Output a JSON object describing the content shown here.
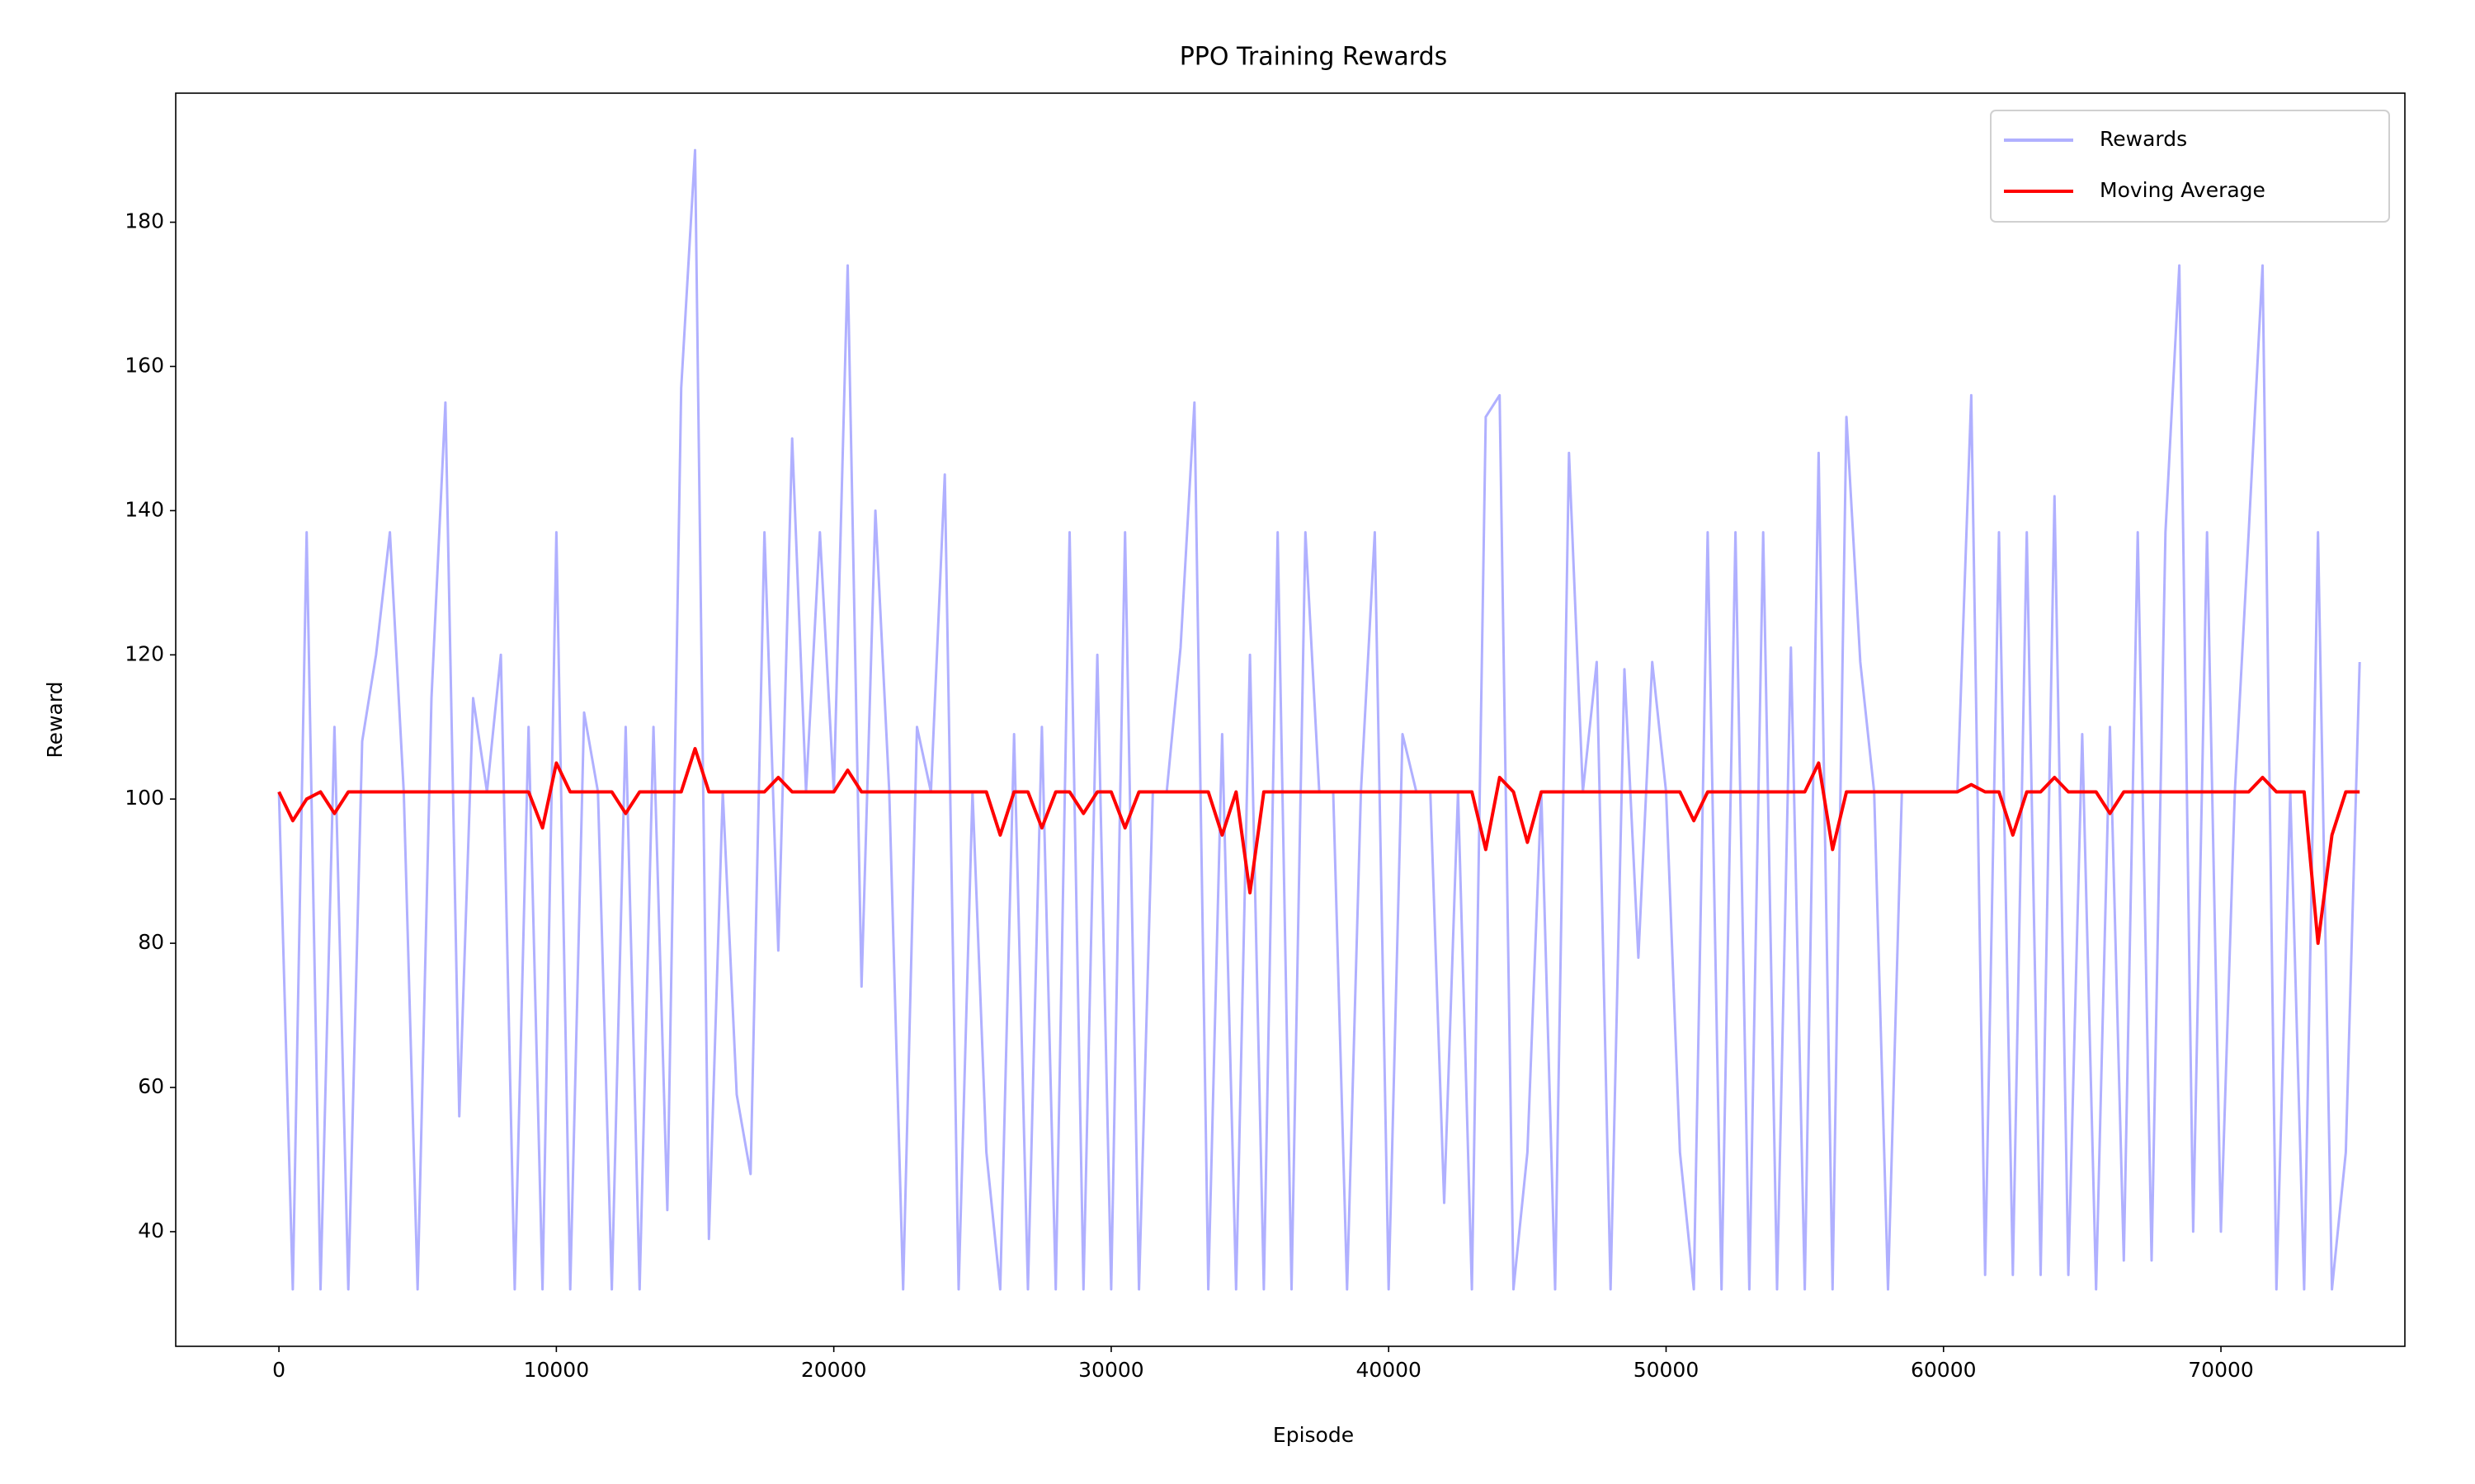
{
  "chart_data": {
    "type": "line",
    "title": "PPO Training Rewards",
    "x_label": "Episode",
    "y_label": "Reward",
    "x": [
      0,
      500,
      1000,
      1500,
      2000,
      2500,
      3000,
      3500,
      4000,
      4500,
      5000,
      5500,
      6000,
      6500,
      7000,
      7500,
      8000,
      8500,
      9000,
      9500,
      10000,
      10500,
      11000,
      11500,
      12000,
      12500,
      13000,
      13500,
      14000,
      14500,
      15000,
      15500,
      16000,
      16500,
      17000,
      17500,
      18000,
      18500,
      19000,
      19500,
      20000,
      20500,
      21000,
      21500,
      22000,
      22500,
      23000,
      23500,
      24000,
      24500,
      25000,
      25500,
      26000,
      26500,
      27000,
      27500,
      28000,
      28500,
      29000,
      29500,
      30000,
      30500,
      31000,
      31500,
      32000,
      32500,
      33000,
      33500,
      34000,
      34500,
      35000,
      35500,
      36000,
      36500,
      37000,
      37500,
      38000,
      38500,
      39000,
      39500,
      40000,
      40500,
      41000,
      41500,
      42000,
      42500,
      43000,
      43500,
      44000,
      44500,
      45000,
      45500,
      46000,
      46500,
      47000,
      47500,
      48000,
      48500,
      49000,
      49500,
      50000,
      50500,
      51000,
      51500,
      52000,
      52500,
      53000,
      53500,
      54000,
      54500,
      55000,
      55500,
      56000,
      56500,
      57000,
      57500,
      58000,
      58500,
      59000,
      59500,
      60000,
      60500,
      61000,
      61500,
      62000,
      62500,
      63000,
      63500,
      64000,
      64500,
      65000,
      65500,
      66000,
      66500,
      67000,
      67500,
      68000,
      68500,
      69000,
      69500,
      70000,
      70500,
      71000,
      71500,
      72000,
      72500,
      73000,
      73500,
      74000,
      74500,
      75000
    ],
    "series": [
      {
        "name": "Rewards",
        "color": "#b0b0ff",
        "values": [
          101,
          32,
          137,
          32,
          110,
          32,
          108,
          120,
          137,
          101,
          32,
          114,
          155,
          56,
          114,
          101,
          120,
          32,
          110,
          32,
          137,
          32,
          112,
          101,
          32,
          110,
          32,
          110,
          43,
          157,
          190,
          39,
          101,
          59,
          48,
          137,
          79,
          150,
          101,
          137,
          101,
          174,
          74,
          140,
          101,
          32,
          110,
          101,
          145,
          32,
          101,
          51,
          32,
          109,
          32,
          110,
          32,
          137,
          32,
          120,
          32,
          137,
          32,
          101,
          101,
          121,
          155,
          32,
          109,
          32,
          120,
          32,
          137,
          32,
          137,
          101,
          101,
          32,
          101,
          137,
          32,
          109,
          101,
          101,
          44,
          101,
          32,
          153,
          156,
          32,
          51,
          101,
          32,
          148,
          101,
          119,
          32,
          118,
          78,
          119,
          101,
          51,
          32,
          137,
          32,
          137,
          32,
          137,
          32,
          121,
          32,
          148,
          32,
          153,
          119,
          101,
          32,
          101,
          101,
          101,
          101,
          101,
          156,
          34,
          137,
          34,
          137,
          34,
          142,
          34,
          109,
          32,
          110,
          36,
          137,
          36,
          137,
          174,
          40,
          137,
          40,
          101,
          137,
          174,
          32,
          101,
          32,
          137,
          32,
          51,
          119
        ]
      },
      {
        "name": "Moving Average",
        "color": "#ff0000",
        "values": [
          101,
          97,
          100,
          101,
          98,
          101,
          101,
          101,
          101,
          101,
          101,
          101,
          101,
          101,
          101,
          101,
          101,
          101,
          101,
          96,
          105,
          101,
          101,
          101,
          101,
          98,
          101,
          101,
          101,
          101,
          107,
          101,
          101,
          101,
          101,
          101,
          103,
          101,
          101,
          101,
          101,
          104,
          101,
          101,
          101,
          101,
          101,
          101,
          101,
          101,
          101,
          101,
          95,
          101,
          101,
          96,
          101,
          101,
          98,
          101,
          101,
          96,
          101,
          101,
          101,
          101,
          101,
          101,
          95,
          101,
          87,
          101,
          101,
          101,
          101,
          101,
          101,
          101,
          101,
          101,
          101,
          101,
          101,
          101,
          101,
          101,
          101,
          93,
          103,
          101,
          94,
          101,
          101,
          101,
          101,
          101,
          101,
          101,
          101,
          101,
          101,
          101,
          97,
          101,
          101,
          101,
          101,
          101,
          101,
          101,
          101,
          105,
          93,
          101,
          101,
          101,
          101,
          101,
          101,
          101,
          101,
          101,
          102,
          101,
          101,
          95,
          101,
          101,
          103,
          101,
          101,
          101,
          98,
          101,
          101,
          101,
          101,
          101,
          101,
          101,
          101,
          101,
          101,
          103,
          101,
          101,
          101,
          80,
          95,
          101,
          101
        ]
      }
    ],
    "xlim": [
      -3720,
      76630
    ],
    "ylim": [
      24.1,
      197.9
    ],
    "xticks": [
      0,
      10000,
      20000,
      30000,
      40000,
      50000,
      60000,
      70000
    ],
    "yticks": [
      40,
      60,
      80,
      100,
      120,
      140,
      160,
      180
    ],
    "legend": "upper right"
  }
}
